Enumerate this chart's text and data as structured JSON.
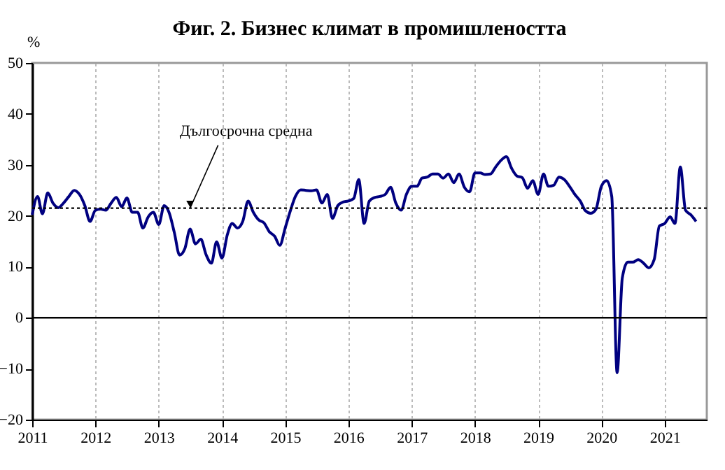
{
  "chart_data": {
    "type": "line",
    "title": "Фиг. 2. Бизнес климат в промишлеността",
    "ylabel": "%",
    "x": [
      "2011-01",
      "2011-02",
      "2011-03",
      "2011-04",
      "2011-05",
      "2011-06",
      "2011-07",
      "2011-08",
      "2011-09",
      "2011-10",
      "2011-11",
      "2011-12",
      "2012-01",
      "2012-02",
      "2012-03",
      "2012-04",
      "2012-05",
      "2012-06",
      "2012-07",
      "2012-08",
      "2012-09",
      "2012-10",
      "2012-11",
      "2012-12",
      "2013-01",
      "2013-02",
      "2013-03",
      "2013-04",
      "2013-05",
      "2013-06",
      "2013-07",
      "2013-08",
      "2013-09",
      "2013-10",
      "2013-11",
      "2013-12",
      "2014-01",
      "2014-02",
      "2014-03",
      "2014-04",
      "2014-05",
      "2014-06",
      "2014-07",
      "2014-08",
      "2014-09",
      "2014-10",
      "2014-11",
      "2014-12",
      "2015-01",
      "2015-02",
      "2015-03",
      "2015-04",
      "2015-05",
      "2015-06",
      "2015-07",
      "2015-08",
      "2015-09",
      "2015-10",
      "2015-11",
      "2015-12",
      "2016-01",
      "2016-02",
      "2016-03",
      "2016-04",
      "2016-05",
      "2016-06",
      "2016-07",
      "2016-08",
      "2016-09",
      "2016-10",
      "2016-11",
      "2016-12",
      "2017-01",
      "2017-02",
      "2017-03",
      "2017-04",
      "2017-05",
      "2017-06",
      "2017-07",
      "2017-08",
      "2017-09",
      "2017-10",
      "2017-11",
      "2017-12",
      "2018-01",
      "2018-02",
      "2018-03",
      "2018-04",
      "2018-05",
      "2018-06",
      "2018-07",
      "2018-08",
      "2018-09",
      "2018-10",
      "2018-11",
      "2018-12",
      "2019-01",
      "2019-02",
      "2019-03",
      "2019-04",
      "2019-05",
      "2019-06",
      "2019-07",
      "2019-08",
      "2019-09",
      "2019-10",
      "2019-11",
      "2019-12",
      "2020-01",
      "2020-02",
      "2020-03",
      "2020-04",
      "2020-05",
      "2020-06",
      "2020-07",
      "2020-08",
      "2020-09",
      "2020-10",
      "2020-11",
      "2020-12",
      "2021-01",
      "2021-02",
      "2021-03",
      "2021-04",
      "2021-05",
      "2021-06",
      "2021-07"
    ],
    "series": [
      {
        "color": "#000080",
        "values": [
          20.2,
          23.8,
          20.4,
          24.5,
          22.5,
          21.6,
          22.5,
          23.8,
          25,
          24.2,
          22,
          18.9,
          21.1,
          21.3,
          21.1,
          22.5,
          23.6,
          21.8,
          23.5,
          20.7,
          20.7,
          17.6,
          19.8,
          20.7,
          18.3,
          22,
          20.7,
          16.7,
          12.3,
          13.6,
          17.4,
          14.5,
          15.4,
          12.4,
          10.7,
          14.9,
          11.7,
          16.3,
          18.5,
          17.6,
          18.9,
          22.9,
          20.7,
          19.2,
          18.6,
          16.9,
          16,
          14.2,
          17.6,
          21.1,
          23.8,
          25.1,
          25,
          24.9,
          25.1,
          22.5,
          24.2,
          19.5,
          22,
          22.7,
          22.9,
          23.4,
          27.1,
          18.5,
          22.9,
          23.6,
          23.8,
          24.2,
          25.6,
          22.5,
          21.1,
          24.2,
          25.8,
          25.8,
          27.4,
          27.6,
          28.2,
          28.2,
          27.4,
          28.2,
          26.5,
          28.2,
          25.6,
          24.7,
          28.4,
          28.4,
          28.1,
          28.2,
          29.6,
          30.9,
          31.6,
          29.3,
          27.8,
          27.5,
          25.4,
          26.9,
          24.2,
          28.2,
          25.8,
          26,
          27.6,
          27.1,
          25.8,
          24.2,
          22.9,
          21,
          20.5,
          21.3,
          25.8,
          26.9,
          23.8,
          -10.8,
          7.8,
          10.9,
          10.9,
          11.4,
          10.7,
          9.8,
          11.4,
          18,
          18.5,
          19.8,
          18.5,
          29.6,
          21.1,
          20.2,
          18.9
        ]
      }
    ],
    "xlim": [
      "2011-01",
      "2021-09"
    ],
    "xticks": [
      {
        "value": "2011-01",
        "label": "2011"
      },
      {
        "value": "2012-01",
        "label": "2012"
      },
      {
        "value": "2013-01",
        "label": "2013"
      },
      {
        "value": "2014-01",
        "label": "2014"
      },
      {
        "value": "2015-01",
        "label": "2015"
      },
      {
        "value": "2016-01",
        "label": "2016"
      },
      {
        "value": "2017-01",
        "label": "2017"
      },
      {
        "value": "2018-01",
        "label": "2018"
      },
      {
        "value": "2019-01",
        "label": "2019"
      },
      {
        "value": "2020-01",
        "label": "2020"
      },
      {
        "value": "2021-01",
        "label": "2021"
      }
    ],
    "ylim": [
      -20,
      50
    ],
    "yticks": [
      -20,
      -10,
      0,
      10,
      20,
      30,
      40,
      50
    ],
    "grid": "x",
    "line_style": "solid",
    "ref_lines": [
      {
        "axis": "y",
        "value": 0,
        "color": "#000000",
        "line_style": "solid"
      },
      {
        "axis": "y",
        "value": 21.5,
        "color": "#000000",
        "line_style": "dotted"
      }
    ],
    "annotations": [
      {
        "text": "Дългосрочна средна",
        "x": "2013-07",
        "y": 21.5
      }
    ]
  }
}
